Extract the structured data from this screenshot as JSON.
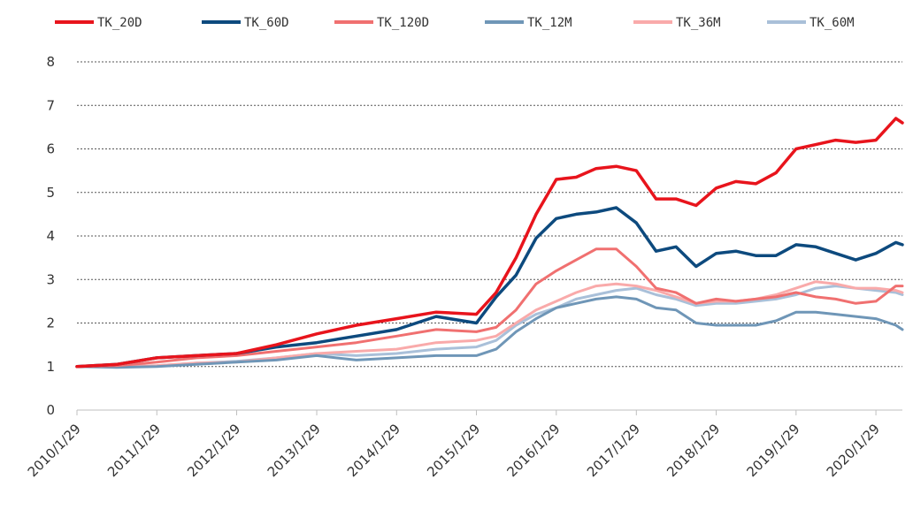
{
  "chart_data": {
    "type": "line",
    "title": "",
    "xlabel": "",
    "ylabel": "",
    "ylim": [
      0,
      8
    ],
    "xlim": [
      "2010-01-29",
      "2020-05-29"
    ],
    "yticks": [
      "0",
      "1",
      "2",
      "3",
      "4",
      "5",
      "6",
      "7",
      "8"
    ],
    "xticks": [
      {
        "date": "2010-01-29",
        "label": "2010/1/29"
      },
      {
        "date": "2011-01-29",
        "label": "2011/1/29"
      },
      {
        "date": "2012-01-29",
        "label": "2012/1/29"
      },
      {
        "date": "2013-01-29",
        "label": "2013/1/29"
      },
      {
        "date": "2014-01-29",
        "label": "2014/1/29"
      },
      {
        "date": "2015-01-29",
        "label": "2015/1/29"
      },
      {
        "date": "2016-01-29",
        "label": "2016/1/29"
      },
      {
        "date": "2017-01-29",
        "label": "2017/1/29"
      },
      {
        "date": "2018-01-29",
        "label": "2018/1/29"
      },
      {
        "date": "2019-01-29",
        "label": "2019/1/29"
      },
      {
        "date": "2020-01-29",
        "label": "2020/1/29"
      }
    ],
    "grid": "horizontal dotted",
    "legend_position": "top",
    "x": [
      "2010-01-29",
      "2010-07-29",
      "2011-01-29",
      "2011-07-29",
      "2012-01-29",
      "2012-07-29",
      "2013-01-29",
      "2013-07-29",
      "2014-01-29",
      "2014-07-29",
      "2015-01-29",
      "2015-04-29",
      "2015-07-29",
      "2015-10-29",
      "2016-01-29",
      "2016-04-29",
      "2016-07-29",
      "2016-10-29",
      "2017-01-29",
      "2017-04-29",
      "2017-07-29",
      "2017-10-29",
      "2018-01-29",
      "2018-04-29",
      "2018-07-29",
      "2018-10-29",
      "2019-01-29",
      "2019-04-29",
      "2019-07-29",
      "2019-10-29",
      "2020-01-29",
      "2020-04-29",
      "2020-05-29"
    ],
    "series": [
      {
        "name": "TK_20D",
        "color": "#e8141c",
        "values": [
          1.0,
          1.05,
          1.2,
          1.25,
          1.3,
          1.5,
          1.75,
          1.95,
          2.1,
          2.25,
          2.2,
          2.7,
          3.5,
          4.5,
          5.3,
          5.35,
          5.55,
          5.6,
          5.5,
          4.85,
          4.85,
          4.7,
          5.1,
          5.25,
          5.2,
          5.45,
          6.0,
          6.1,
          6.2,
          6.15,
          6.2,
          6.7,
          6.6
        ]
      },
      {
        "name": "TK_60D",
        "color": "#0d4a7e",
        "values": [
          1.0,
          1.05,
          1.2,
          1.25,
          1.3,
          1.45,
          1.55,
          1.7,
          1.85,
          2.15,
          2.0,
          2.6,
          3.1,
          3.95,
          4.4,
          4.5,
          4.55,
          4.65,
          4.3,
          3.65,
          3.75,
          3.3,
          3.6,
          3.65,
          3.55,
          3.55,
          3.8,
          3.75,
          3.6,
          3.45,
          3.6,
          3.85,
          3.8
        ]
      },
      {
        "name": "TK_120D",
        "color": "#f07070",
        "values": [
          1.0,
          1.02,
          1.1,
          1.2,
          1.25,
          1.35,
          1.45,
          1.55,
          1.7,
          1.85,
          1.8,
          1.9,
          2.3,
          2.9,
          3.2,
          3.45,
          3.7,
          3.7,
          3.3,
          2.8,
          2.7,
          2.45,
          2.55,
          2.5,
          2.55,
          2.6,
          2.7,
          2.6,
          2.55,
          2.45,
          2.5,
          2.85,
          2.85
        ]
      },
      {
        "name": "TK_12M",
        "color": "#6f96b7",
        "values": [
          1.0,
          0.98,
          1.0,
          1.05,
          1.1,
          1.15,
          1.25,
          1.15,
          1.2,
          1.25,
          1.25,
          1.4,
          1.8,
          2.1,
          2.35,
          2.45,
          2.55,
          2.6,
          2.55,
          2.35,
          2.3,
          2.0,
          1.95,
          1.95,
          1.95,
          2.05,
          2.25,
          2.25,
          2.2,
          2.15,
          2.1,
          1.95,
          1.85
        ]
      },
      {
        "name": "TK_36M",
        "color": "#f9aaaa",
        "values": [
          1.0,
          1.0,
          1.02,
          1.08,
          1.1,
          1.2,
          1.3,
          1.35,
          1.4,
          1.55,
          1.6,
          1.7,
          2.0,
          2.3,
          2.5,
          2.7,
          2.85,
          2.9,
          2.85,
          2.75,
          2.6,
          2.45,
          2.5,
          2.5,
          2.55,
          2.65,
          2.8,
          2.95,
          2.9,
          2.8,
          2.8,
          2.75,
          2.7
        ]
      },
      {
        "name": "TK_60M",
        "color": "#a9c0d9",
        "values": [
          1.0,
          1.0,
          1.02,
          1.08,
          1.12,
          1.2,
          1.3,
          1.25,
          1.3,
          1.4,
          1.45,
          1.6,
          1.95,
          2.2,
          2.35,
          2.55,
          2.65,
          2.75,
          2.8,
          2.65,
          2.55,
          2.4,
          2.45,
          2.45,
          2.5,
          2.55,
          2.65,
          2.8,
          2.85,
          2.8,
          2.75,
          2.7,
          2.65
        ]
      }
    ]
  }
}
